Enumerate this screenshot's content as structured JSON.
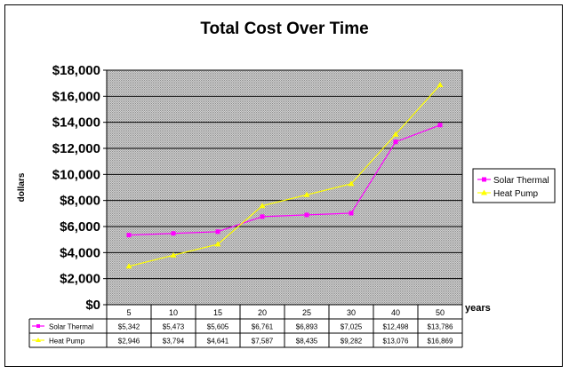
{
  "chart_data": {
    "type": "line",
    "title": "Total Cost Over Time",
    "xlabel": "years",
    "ylabel": "dollars",
    "ylim": [
      0,
      18000
    ],
    "yticks": [
      "$0",
      "$2,000",
      "$4,000",
      "$6,000",
      "$8,000",
      "$10,000",
      "$12,000",
      "$14,000",
      "$16,000",
      "$18,000"
    ],
    "categories": [
      "5",
      "10",
      "15",
      "20",
      "25",
      "30",
      "40",
      "50"
    ],
    "grid": true,
    "legend_position": "right",
    "series": [
      {
        "name": "Solar Thermal",
        "color": "#ff00ff",
        "marker": "square",
        "values": [
          5342,
          5473,
          5605,
          6761,
          6893,
          7025,
          12498,
          13786
        ],
        "labels": [
          "$5,342",
          "$5,473",
          "$5,605",
          "$6,761",
          "$6,893",
          "$7,025",
          "$12,498",
          "$13,786"
        ]
      },
      {
        "name": "Heat Pump",
        "color": "#ffff00",
        "marker": "triangle",
        "values": [
          2946,
          3794,
          4641,
          7587,
          8435,
          9282,
          13076,
          16869
        ],
        "labels": [
          "$2,946",
          "$3,794",
          "$4,641",
          "$7,587",
          "$8,435",
          "$9,282",
          "$13,076",
          "$16,869"
        ]
      }
    ]
  }
}
